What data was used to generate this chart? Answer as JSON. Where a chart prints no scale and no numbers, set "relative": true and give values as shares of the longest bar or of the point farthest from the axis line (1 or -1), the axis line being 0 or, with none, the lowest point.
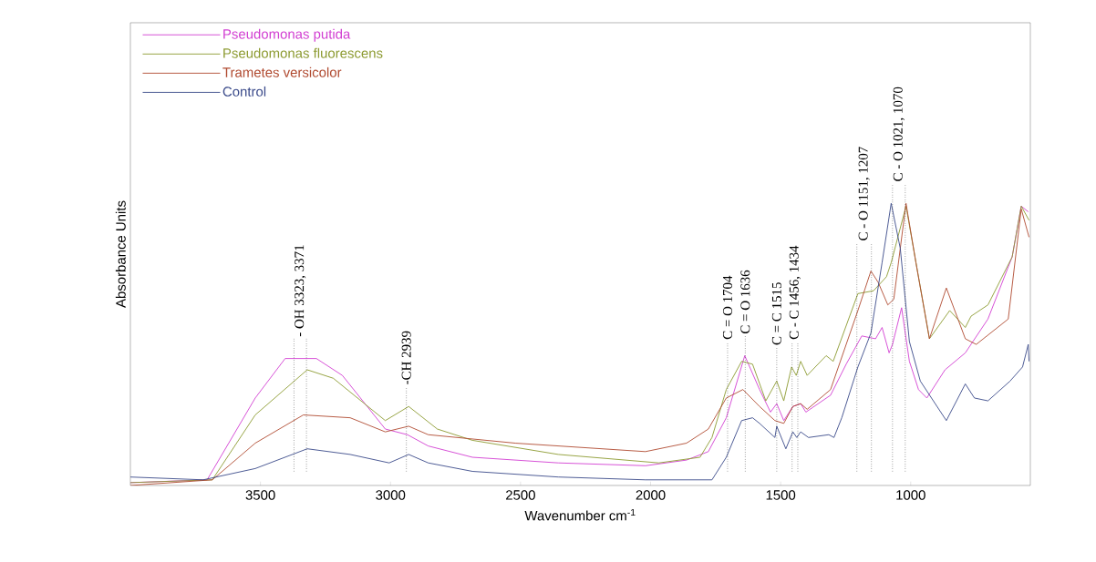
{
  "chart_data": {
    "type": "line",
    "relative": true,
    "xlabel": "Wavenumber cm$^{-1}$",
    "ylabel": "Absorbance Units",
    "xlim": [
      4000,
      540
    ],
    "xticks": [
      3500,
      3000,
      2500,
      2000,
      1500,
      1000
    ],
    "legend": "top left",
    "marker": "none",
    "line_style": "solid",
    "series": [
      {
        "name": "Pseudomonas putida",
        "color": "#d23fd2",
        "x": [
          4000,
          3705,
          3520,
          3405,
          3285,
          3185,
          3020,
          2935,
          2855,
          2685,
          2355,
          2020,
          1862,
          1778,
          1709,
          1638,
          1581,
          1539,
          1515,
          1488,
          1453,
          1423,
          1403,
          1308,
          1248,
          1188,
          1135,
          1110,
          1083,
          1070,
          1035,
          1005,
          970,
          938,
          868,
          790,
          703,
          610,
          575,
          548
        ],
        "values": [
          0.01,
          0.02,
          0.31,
          0.45,
          0.45,
          0.39,
          0.2,
          0.18,
          0.14,
          0.1,
          0.08,
          0.07,
          0.09,
          0.12,
          0.24,
          0.46,
          0.34,
          0.26,
          0.29,
          0.23,
          0.28,
          0.29,
          0.26,
          0.32,
          0.43,
          0.53,
          0.52,
          0.56,
          0.47,
          0.5,
          0.63,
          0.44,
          0.34,
          0.31,
          0.41,
          0.47,
          0.59,
          0.81,
          0.99,
          0.97
        ]
      },
      {
        "name": "Pseudomonas fluorescens",
        "color": "#8c9a30",
        "x": [
          4000,
          3685,
          3520,
          3320,
          3220,
          3020,
          2930,
          2820,
          2685,
          2355,
          1968,
          1810,
          1764,
          1709,
          1650,
          1608,
          1557,
          1515,
          1488,
          1458,
          1440,
          1423,
          1398,
          1325,
          1298,
          1203,
          1143,
          1093,
          1075,
          1018,
          928,
          850,
          790,
          768,
          703,
          610,
          575,
          545
        ],
        "values": [
          0.01,
          0.02,
          0.25,
          0.41,
          0.38,
          0.23,
          0.28,
          0.2,
          0.16,
          0.11,
          0.08,
          0.1,
          0.17,
          0.34,
          0.44,
          0.43,
          0.3,
          0.37,
          0.3,
          0.42,
          0.39,
          0.44,
          0.39,
          0.46,
          0.44,
          0.68,
          0.69,
          0.74,
          0.79,
          0.99,
          0.52,
          0.62,
          0.56,
          0.6,
          0.64,
          0.81,
          0.99,
          0.94
        ]
      },
      {
        "name": "Trametes versicolor",
        "color": "#b04a30",
        "x": [
          4000,
          3685,
          3520,
          3335,
          3155,
          3020,
          2930,
          2855,
          2520,
          2020,
          1862,
          1778,
          1709,
          1645,
          1581,
          1522,
          1488,
          1453,
          1423,
          1398,
          1308,
          1203,
          1153,
          1125,
          1088,
          1065,
          1018,
          980,
          928,
          863,
          790,
          748,
          625,
          575,
          545
        ],
        "values": [
          0.0,
          0.02,
          0.15,
          0.25,
          0.24,
          0.19,
          0.21,
          0.18,
          0.15,
          0.12,
          0.15,
          0.2,
          0.31,
          0.34,
          0.28,
          0.23,
          0.22,
          0.28,
          0.29,
          0.27,
          0.34,
          0.62,
          0.76,
          0.72,
          0.64,
          0.66,
          1.0,
          0.79,
          0.52,
          0.7,
          0.52,
          0.5,
          0.59,
          0.98,
          0.88
        ]
      },
      {
        "name": "Control",
        "color": "#3a4a8a",
        "x": [
          4000,
          3720,
          3520,
          3320,
          3155,
          3005,
          2930,
          2855,
          2685,
          2355,
          2020,
          1764,
          1709,
          1650,
          1608,
          1581,
          1522,
          1515,
          1480,
          1453,
          1438,
          1423,
          1393,
          1315,
          1295,
          1265,
          1203,
          1153,
          1110,
          1075,
          1040,
          1005,
          963,
          863,
          790,
          755,
          703,
          618,
          570,
          548,
          545
        ],
        "values": [
          0.03,
          0.02,
          0.06,
          0.13,
          0.11,
          0.08,
          0.11,
          0.08,
          0.05,
          0.03,
          0.02,
          0.02,
          0.1,
          0.23,
          0.24,
          0.22,
          0.17,
          0.21,
          0.13,
          0.19,
          0.17,
          0.19,
          0.17,
          0.18,
          0.17,
          0.24,
          0.42,
          0.54,
          0.79,
          1.0,
          0.84,
          0.51,
          0.37,
          0.23,
          0.36,
          0.31,
          0.3,
          0.37,
          0.42,
          0.5,
          0.44
        ]
      }
    ],
    "ref_lines": [
      {
        "axis": "x",
        "value": 3371,
        "label": "- OH 3323, 3371",
        "color": "#000000",
        "line_style": "dotted"
      },
      {
        "axis": "x",
        "value": 3323,
        "color": "#000000",
        "line_style": "dotted"
      },
      {
        "axis": "x",
        "value": 2939,
        "label": "-CH 2939",
        "color": "#000000",
        "line_style": "dotted"
      },
      {
        "axis": "x",
        "value": 1704,
        "label": "C = O 1704",
        "color": "#000000",
        "line_style": "dotted"
      },
      {
        "axis": "x",
        "value": 1636,
        "label": "C = O 1636",
        "color": "#000000",
        "line_style": "dotted"
      },
      {
        "axis": "x",
        "value": 1515,
        "label": "C = C 1515",
        "color": "#000000",
        "line_style": "dotted"
      },
      {
        "axis": "x",
        "value": 1456,
        "label": "C - C 1456, 1434",
        "color": "#000000",
        "line_style": "dotted"
      },
      {
        "axis": "x",
        "value": 1434,
        "color": "#000000",
        "line_style": "dotted"
      },
      {
        "axis": "x",
        "value": 1207,
        "label": "C - O 1151, 1207",
        "color": "#000000",
        "line_style": "dotted"
      },
      {
        "axis": "x",
        "value": 1151,
        "color": "#000000",
        "line_style": "dotted"
      },
      {
        "axis": "x",
        "value": 1070,
        "label": "C - O 1021, 1070",
        "color": "#000000",
        "line_style": "dotted"
      },
      {
        "axis": "x",
        "value": 1021,
        "color": "#000000",
        "line_style": "dotted"
      }
    ]
  }
}
